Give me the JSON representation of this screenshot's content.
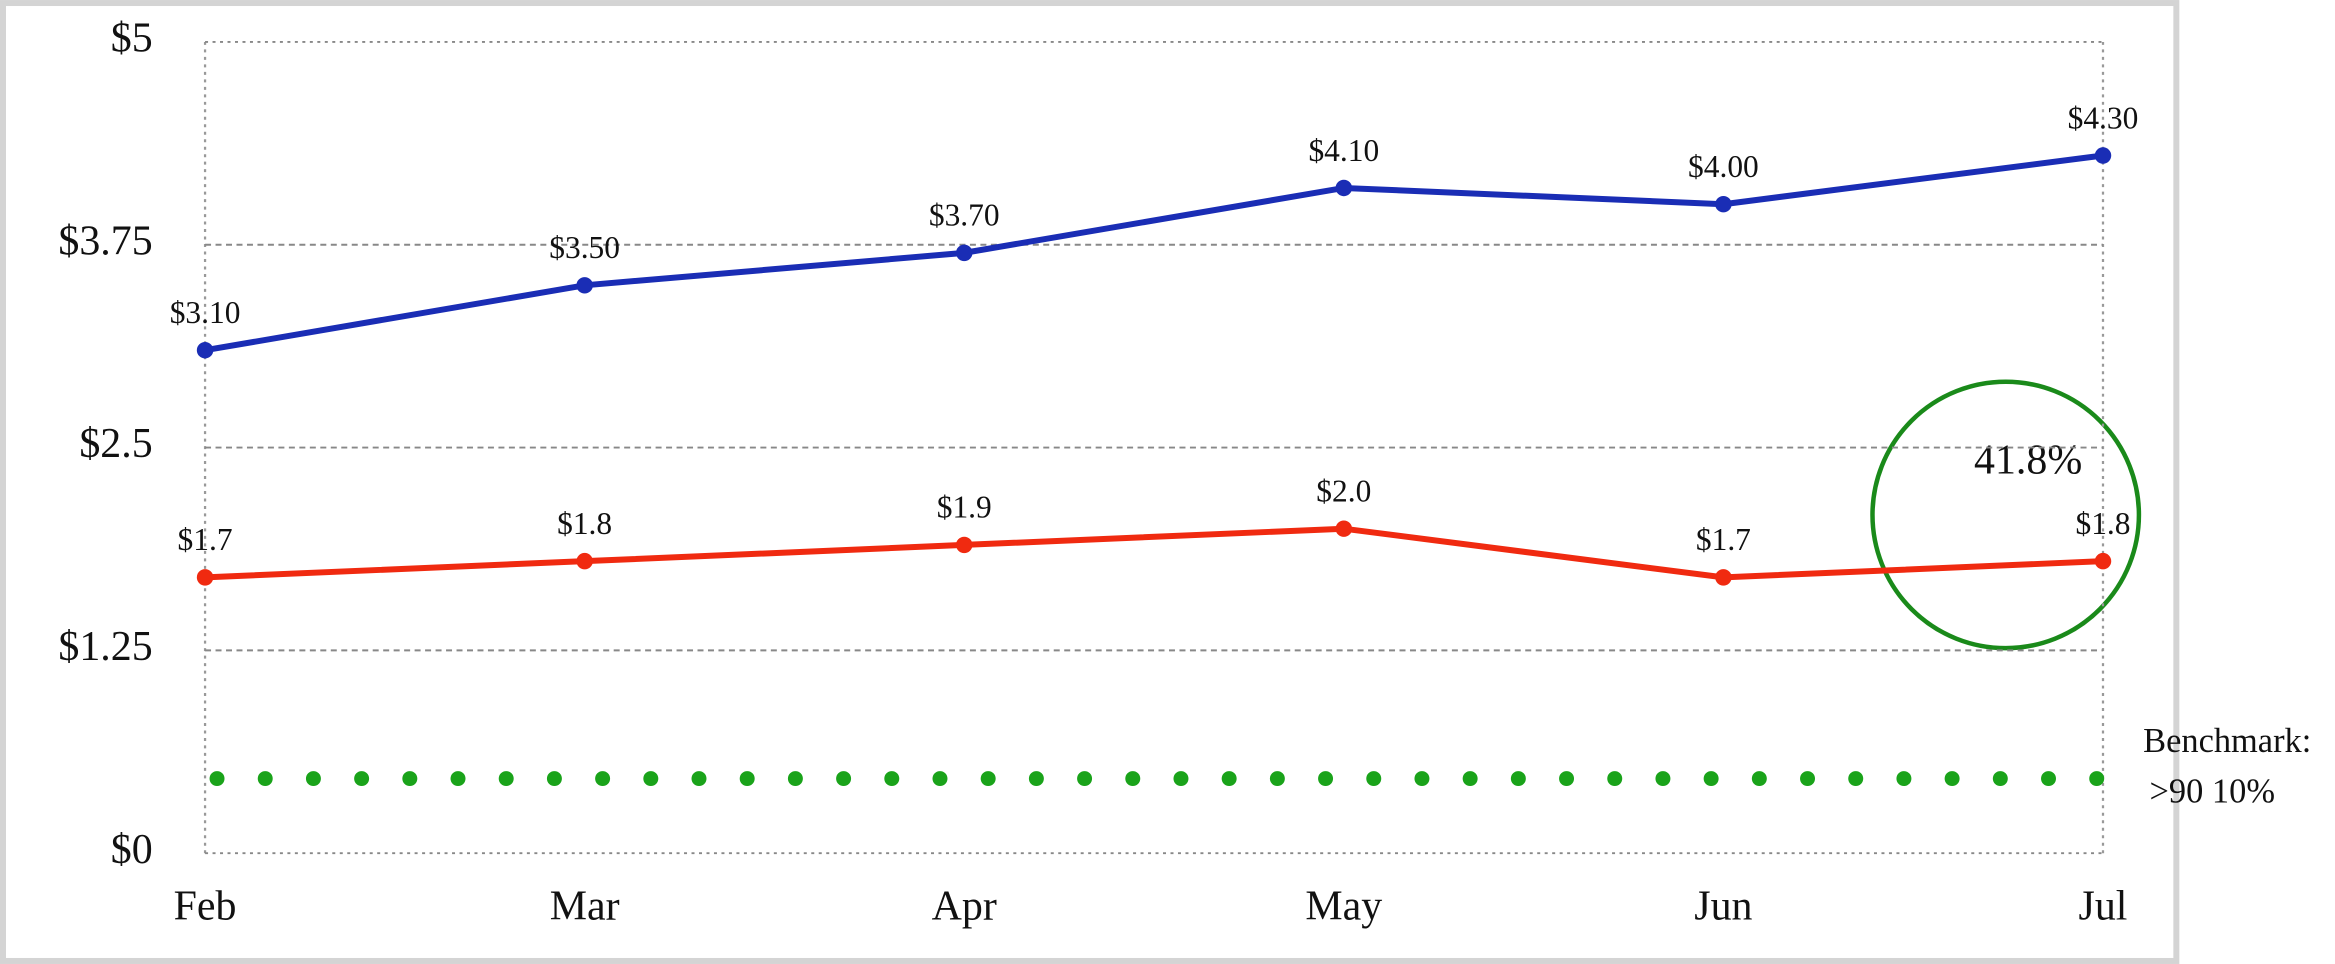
{
  "chart_data": {
    "type": "line",
    "categories": [
      "Feb",
      "Mar",
      "Apr",
      "May",
      "Jun",
      "Jul"
    ],
    "series": [
      {
        "color": "#1a2db5",
        "values": [
          3.1,
          3.5,
          3.7,
          4.1,
          4.0,
          4.3
        ],
        "value_labels": [
          "$3.10",
          "$3.50",
          "$3.70",
          "$4.10",
          "$4.00",
          "$4.30"
        ]
      },
      {
        "color": "#f02a10",
        "values": [
          1.7,
          1.8,
          1.9,
          2.0,
          1.7,
          1.8
        ],
        "value_labels": [
          "$1.7",
          "$1.8",
          "$1.9",
          "$2.0",
          "$1.7",
          "$1.8"
        ]
      }
    ],
    "ylim": [
      0,
      5
    ],
    "yticks": [
      {
        "value": 0,
        "label": "$0"
      },
      {
        "value": 1.25,
        "label": "$1.25"
      },
      {
        "value": 2.5,
        "label": "$2.5"
      },
      {
        "value": 3.75,
        "label": "$3.75"
      },
      {
        "value": 5,
        "label": "$5"
      }
    ],
    "grid": true,
    "benchmark": {
      "value": 0.46,
      "color": "#1aa31a",
      "label": [
        "Benchmark:",
        ">90 10%"
      ]
    },
    "annotation": {
      "text": "41.8%",
      "color": "#1a8a1a"
    }
  }
}
